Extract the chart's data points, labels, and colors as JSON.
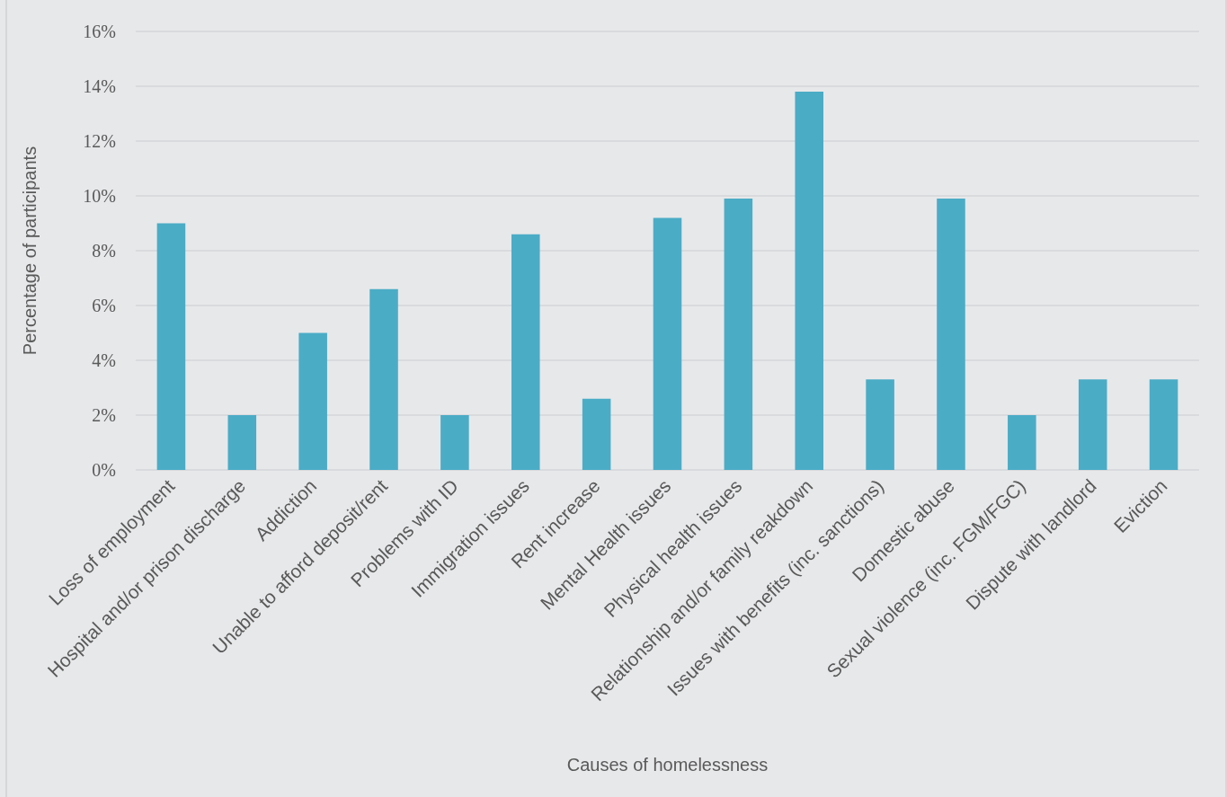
{
  "chart_data": {
    "type": "bar",
    "xlabel": "Causes of homelessness",
    "ylabel": "Percentage of participants",
    "categories": [
      "Loss of employment",
      "Hospital and/or prison discharge",
      "Addiction",
      "Unable to afford deposit/rent",
      "Problems with ID",
      "Immigration issues",
      "Rent increase",
      "Mental Health issues",
      "Physical health issues",
      "Relationship and/or family reakdown",
      "Issues with benefits (inc. sanctions)",
      "Domestic abuse",
      "Sexual violence (inc. FGM/FGC)",
      "Dispute with landlord",
      "Eviction"
    ],
    "values": [
      9.0,
      2.0,
      5.0,
      6.6,
      2.0,
      8.6,
      2.6,
      9.2,
      9.9,
      13.8,
      3.3,
      9.9,
      2.0,
      3.3,
      3.3
    ],
    "color": "#4bacc6",
    "ylim": [
      0,
      16
    ],
    "yticks": [
      {
        "value": 0,
        "label": "0%"
      },
      {
        "value": 2,
        "label": "2%"
      },
      {
        "value": 4,
        "label": "4%"
      },
      {
        "value": 6,
        "label": "6%"
      },
      {
        "value": 8,
        "label": "8%"
      },
      {
        "value": 10,
        "label": "10%"
      },
      {
        "value": 12,
        "label": "12%"
      },
      {
        "value": 14,
        "label": "14%"
      },
      {
        "value": 16,
        "label": "16%"
      }
    ],
    "grid": "y"
  }
}
